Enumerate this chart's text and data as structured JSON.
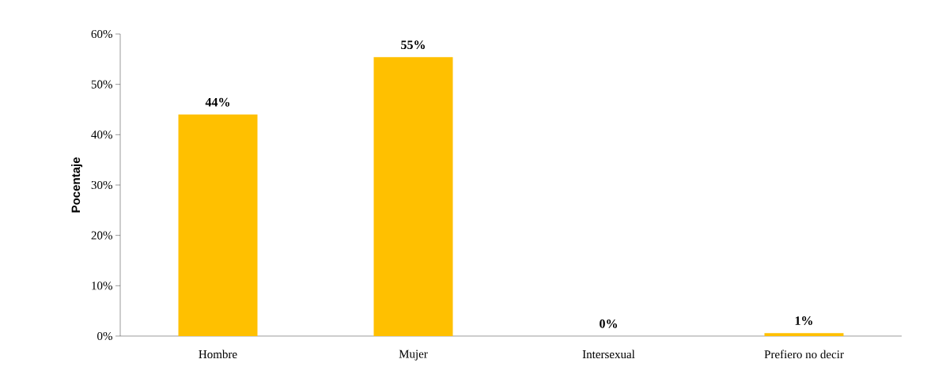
{
  "chart_data": {
    "type": "bar",
    "ylabel": "Pocentaje",
    "categories": [
      "Hombre",
      "Mujer",
      "Intersexual",
      "Prefiero no decir"
    ],
    "values": [
      44,
      55.4,
      0,
      0.6
    ],
    "value_labels": [
      "44%",
      "55%",
      "0%",
      "1%"
    ],
    "color": "#ffc000",
    "ylim": [
      0,
      60
    ],
    "yticks": [
      {
        "value": 0,
        "label": "0%"
      },
      {
        "value": 10,
        "label": "10%"
      },
      {
        "value": 20,
        "label": "20%"
      },
      {
        "value": 30,
        "label": "30%"
      },
      {
        "value": 40,
        "label": "40%"
      },
      {
        "value": 50,
        "label": "50%"
      },
      {
        "value": 60,
        "label": "60%"
      }
    ],
    "grid": false
  }
}
